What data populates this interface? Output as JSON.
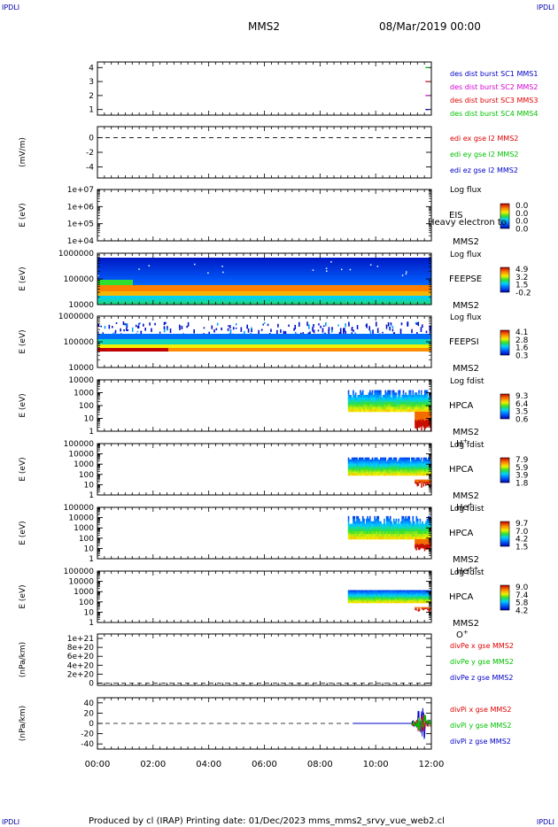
{
  "corners": {
    "tl": "IPDLI",
    "tr": "IPDLI",
    "bl": "IPDLI",
    "br": "IPDLI"
  },
  "header": {
    "spacecraft": "MMS2",
    "datetime": "08/Mar/2019 00:00"
  },
  "footer": "Produced by cl (IRAP)   Printing date: 01/Dec/2023   mms_mms2_srvy_vue_web2.cl",
  "x_axis": {
    "range_hours": [
      0,
      12
    ],
    "tick_labels": [
      "00:00",
      "02:00",
      "04:00",
      "06:00",
      "08:00",
      "10:00",
      "12:00"
    ]
  },
  "chart_data": [
    {
      "type": "line",
      "ylabel": "",
      "yticks": [
        "1",
        "2",
        "3",
        "4"
      ],
      "ylim": [
        0.6,
        4.4
      ],
      "legend": [
        {
          "text": "des dist burst SC1 MMS1",
          "color": "#0000c8"
        },
        {
          "text": "des dist burst SC2 MMS2",
          "color": "#d400d4"
        },
        {
          "text": "des dist burst SC3 MMS3",
          "color": "#e00000"
        },
        {
          "text": "des dist burst SC4 MMS4",
          "color": "#00c000"
        }
      ],
      "series": [
        {
          "name": "des dist burst SC1 MMS1",
          "points": [
            [
              11.85,
              1
            ]
          ]
        },
        {
          "name": "des dist burst SC2 MMS2",
          "points": [
            [
              11.85,
              2
            ]
          ]
        },
        {
          "name": "des dist burst SC3 MMS3",
          "points": [
            [
              11.85,
              3
            ]
          ]
        },
        {
          "name": "des dist burst SC4 MMS4",
          "points": [
            [
              11.85,
              4
            ]
          ]
        }
      ]
    },
    {
      "type": "line",
      "ylabel": "(mV/m)",
      "yticks": [
        "0",
        "-2",
        "-4"
      ],
      "ylim": [
        -5.5,
        1.5
      ],
      "zero_line": true,
      "legend": [
        {
          "text": "edi ex gse l2 MMS2",
          "color": "#e00000"
        },
        {
          "text": "edi ey gse l2 MMS2",
          "color": "#00c000"
        },
        {
          "text": "edi ez gse l2 MMS2",
          "color": "#0000c8"
        }
      ]
    },
    {
      "type": "heatmap",
      "ylabel": "E (eV)",
      "yticks": [
        "1e+04",
        "1e+05",
        "1e+06",
        "1e+07"
      ],
      "instrument": "EIS",
      "spacecraft": "MMS2",
      "overlay_text": "Heavy electron to",
      "colorbar_title": "Log flux",
      "colorbar_ticks": [
        "0.0",
        "0.0",
        "0.0",
        "0.0"
      ]
    },
    {
      "type": "heatmap",
      "ylabel": "E (eV)",
      "yticks": [
        "10000",
        "100000",
        "1000000"
      ],
      "instrument": "FEEPSE",
      "spacecraft": "MMS2",
      "colorbar_title": "Log flux",
      "colorbar_ticks": [
        "4.9",
        "3.2",
        "1.5",
        "-0.2"
      ]
    },
    {
      "type": "heatmap",
      "ylabel": "E (eV)",
      "yticks": [
        "10000",
        "100000",
        "1000000"
      ],
      "instrument": "FEEPSI",
      "spacecraft": "MMS2",
      "colorbar_title": "Log flux",
      "colorbar_ticks": [
        "4.1",
        "2.8",
        "1.6",
        "0.3"
      ]
    },
    {
      "type": "heatmap",
      "ylabel": "E (eV)",
      "yticks": [
        "1",
        "10",
        "100",
        "1000",
        "10000"
      ],
      "instrument": "HPCA",
      "spacecraft": "MMS2",
      "species": "H",
      "species_charge": "+",
      "colorbar_title": "Log fdist",
      "colorbar_ticks": [
        "9.3",
        "6.4",
        "3.5",
        "0.6"
      ]
    },
    {
      "type": "heatmap",
      "ylabel": "E (eV)",
      "yticks": [
        "1",
        "10",
        "100",
        "1000",
        "10000",
        "100000"
      ],
      "instrument": "HPCA",
      "spacecraft": "MMS2",
      "species": "He",
      "species_charge": "+",
      "colorbar_title": "Log fdist",
      "colorbar_ticks": [
        "7.9",
        "5.9",
        "3.9",
        "1.8"
      ]
    },
    {
      "type": "heatmap",
      "ylabel": "E (eV)",
      "yticks": [
        "1",
        "10",
        "100",
        "1000",
        "10000",
        "100000"
      ],
      "instrument": "HPCA",
      "spacecraft": "MMS2",
      "species": "He",
      "species_charge": "++",
      "colorbar_title": "Log fdist",
      "colorbar_ticks": [
        "9.7",
        "7.0",
        "4.2",
        "1.5"
      ]
    },
    {
      "type": "heatmap",
      "ylabel": "E (eV)",
      "yticks": [
        "1",
        "10",
        "100",
        "1000",
        "10000",
        "100000"
      ],
      "instrument": "HPCA",
      "spacecraft": "MMS2",
      "species": "O",
      "species_charge": "+",
      "colorbar_title": "Log fdist",
      "colorbar_ticks": [
        "9.0",
        "7.4",
        "5.8",
        "4.2"
      ]
    },
    {
      "type": "line",
      "ylabel": "(nPa/km)",
      "yticks": [
        "0",
        "2e+20",
        "4e+20",
        "6e+20",
        "8e+20",
        "1e+21"
      ],
      "ylim": [
        -5e+19,
        1.1e+21
      ],
      "zero_line": true,
      "legend": [
        {
          "text": "divPe x gse MMS2",
          "color": "#e00000"
        },
        {
          "text": "divPe y gse MMS2",
          "color": "#00c000"
        },
        {
          "text": "divPe z gse MMS2",
          "color": "#0000c8"
        }
      ]
    },
    {
      "type": "line",
      "ylabel": "(nPa/km)",
      "yticks": [
        "-40",
        "-20",
        "0",
        "20",
        "40"
      ],
      "ylim": [
        -50,
        50
      ],
      "zero_line": true,
      "legend": [
        {
          "text": "divPi x gse MMS2",
          "color": "#e00000"
        },
        {
          "text": "divPi y gse MMS2",
          "color": "#00c000"
        },
        {
          "text": "divPi z gse MMS2",
          "color": "#0000c8"
        }
      ]
    }
  ]
}
